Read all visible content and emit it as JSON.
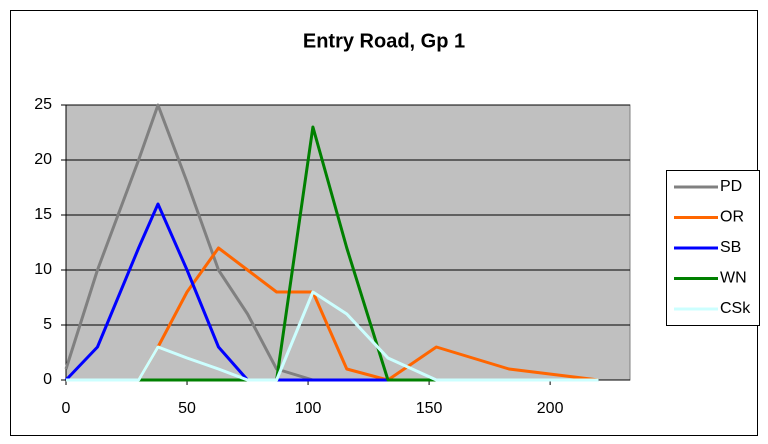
{
  "chart_data": {
    "type": "line",
    "title": "Entry Road, Gp 1",
    "x": [
      0,
      13,
      30,
      38,
      50,
      63,
      75,
      87,
      102,
      116,
      133,
      153,
      183,
      220
    ],
    "series": [
      {
        "name": "PD",
        "color": "#808080",
        "values": [
          1,
          10,
          20,
          25,
          18,
          10,
          6,
          1,
          0,
          0,
          0,
          0,
          0,
          0
        ]
      },
      {
        "name": "OR",
        "color": "#ff6600",
        "values": [
          0,
          0,
          0,
          3,
          8,
          12,
          10,
          8,
          8,
          1,
          0,
          3,
          1,
          0
        ]
      },
      {
        "name": "SB",
        "color": "#0000ff",
        "values": [
          0,
          3,
          12,
          16,
          10,
          3,
          0,
          0,
          0,
          0,
          0,
          0,
          0,
          0
        ]
      },
      {
        "name": "WN",
        "color": "#008000",
        "values": [
          0,
          0,
          0,
          0,
          0,
          0,
          0,
          0,
          23,
          12,
          0,
          0,
          0,
          0
        ]
      },
      {
        "name": "CSk",
        "color": "#ccffff",
        "values": [
          0,
          0,
          0,
          3,
          2,
          1,
          0,
          0,
          8,
          6,
          2,
          0,
          0,
          0
        ]
      }
    ],
    "xlim": [
      0,
      233
    ],
    "xticks": [
      0,
      50,
      100,
      150,
      200
    ],
    "ylim": [
      0,
      25
    ],
    "yticks": [
      0,
      5,
      10,
      15,
      20,
      25
    ],
    "grid": true,
    "legend": "right"
  }
}
